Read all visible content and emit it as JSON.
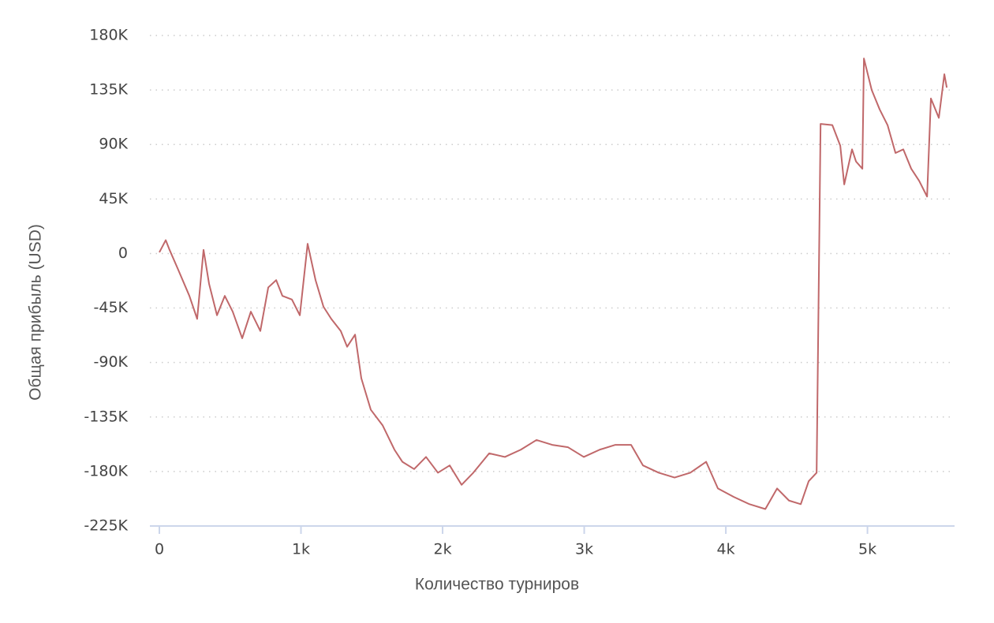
{
  "chart_data": {
    "type": "line",
    "x_label": "Количество турниров",
    "y_label": "Общая прибыль (USD)",
    "x": [
      0,
      45,
      72,
      128,
      212,
      267,
      312,
      351,
      407,
      462,
      518,
      585,
      646,
      713,
      769,
      825,
      869,
      936,
      992,
      1047,
      1103,
      1159,
      1214,
      1281,
      1326,
      1382,
      1426,
      1493,
      1577,
      1660,
      1716,
      1799,
      1883,
      1967,
      2050,
      2134,
      2217,
      2329,
      2440,
      2552,
      2663,
      2774,
      2886,
      2997,
      3109,
      3220,
      3331,
      3415,
      3526,
      3638,
      3749,
      3861,
      3944,
      4056,
      4167,
      4279,
      4362,
      4446,
      4529,
      4585,
      4641,
      4669,
      4752,
      4808,
      4836,
      4891,
      4919,
      4964,
      4975,
      5030,
      5086,
      5142,
      5198,
      5253,
      5309,
      5365,
      5421,
      5448,
      5504,
      5543,
      5560
    ],
    "series": [
      {
        "name": "Общая прибыль (USD)",
        "color": "#c0686a",
        "values": [
          1000,
          11000,
          3000,
          -12000,
          -35000,
          -54000,
          3000,
          -25000,
          -51000,
          -35000,
          -48000,
          -70000,
          -48000,
          -64000,
          -28000,
          -22000,
          -35000,
          -38000,
          -51000,
          8000,
          -22000,
          -44000,
          -54000,
          -64000,
          -77000,
          -67000,
          -103000,
          -129000,
          -142000,
          -162000,
          -172000,
          -178000,
          -168000,
          -181000,
          -175000,
          -191000,
          -181000,
          -165000,
          -168000,
          -162000,
          -154000,
          -158000,
          -160000,
          -168000,
          -162000,
          -158000,
          -158000,
          -175000,
          -181000,
          -185000,
          -181000,
          -172000,
          -194000,
          -201000,
          -207000,
          -211000,
          -194000,
          -204000,
          -207000,
          -188000,
          -181000,
          107000,
          106000,
          89000,
          57000,
          86000,
          76000,
          70000,
          161000,
          135000,
          119000,
          106000,
          83000,
          86000,
          70000,
          60000,
          47000,
          128000,
          112000,
          148000,
          137000
        ]
      }
    ],
    "xlim": [
      0,
      5615
    ],
    "xticks": [
      0,
      {
        "value": 1000,
        "label": "1k"
      },
      {
        "value": 2000,
        "label": "2k"
      },
      {
        "value": 3000,
        "label": "3k"
      },
      {
        "value": 4000,
        "label": "4k"
      },
      {
        "value": 5000,
        "label": "5k"
      }
    ],
    "ylim": [
      -225000,
      180000
    ],
    "yticks": [
      {
        "value": -225000,
        "label": "-225K"
      },
      {
        "value": -180000,
        "label": "-180K"
      },
      {
        "value": -135000,
        "label": "-135K"
      },
      {
        "value": -90000,
        "label": "-90K"
      },
      {
        "value": -45000,
        "label": "-45K"
      },
      0,
      {
        "value": 45000,
        "label": "45K"
      },
      {
        "value": 90000,
        "label": "90K"
      },
      {
        "value": 135000,
        "label": "135K"
      },
      {
        "value": 180000,
        "label": "180K"
      }
    ],
    "grid": true
  }
}
